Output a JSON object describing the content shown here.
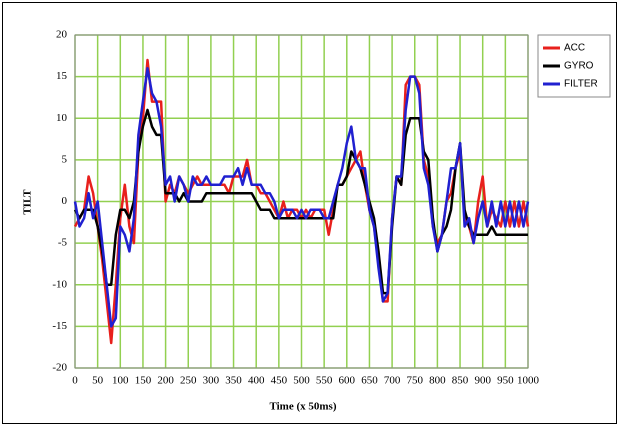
{
  "chart_data": {
    "type": "line",
    "xlabel": "Time (x 50ms)",
    "ylabel": "TILT",
    "x": [
      0,
      10,
      20,
      30,
      40,
      50,
      60,
      70,
      80,
      90,
      100,
      110,
      120,
      130,
      140,
      150,
      160,
      170,
      180,
      190,
      200,
      210,
      220,
      230,
      240,
      250,
      260,
      270,
      280,
      290,
      300,
      310,
      320,
      330,
      340,
      350,
      360,
      370,
      380,
      390,
      400,
      410,
      420,
      430,
      440,
      450,
      460,
      470,
      480,
      490,
      500,
      510,
      520,
      530,
      540,
      550,
      560,
      570,
      580,
      590,
      600,
      610,
      620,
      630,
      640,
      650,
      660,
      670,
      680,
      690,
      700,
      710,
      720,
      730,
      740,
      750,
      760,
      770,
      780,
      790,
      800,
      810,
      820,
      830,
      840,
      850,
      860,
      870,
      880,
      890,
      900,
      910,
      920,
      930,
      940,
      950,
      960,
      970,
      980,
      990,
      1000
    ],
    "series": [
      {
        "name": "ACC",
        "color": "#e8201c",
        "values": [
          -3,
          -2,
          -1,
          3,
          1,
          -3,
          -7,
          -12,
          -17,
          -10,
          -2,
          2,
          -3,
          -5,
          6,
          10,
          17,
          12,
          12,
          12,
          0,
          2,
          1,
          3,
          2,
          1,
          2,
          3,
          2,
          2,
          2,
          2,
          2,
          2,
          1,
          3,
          3,
          3,
          5,
          2,
          2,
          1,
          1,
          0,
          -1,
          -2,
          0,
          -2,
          -1,
          -1,
          -2,
          -1,
          -2,
          -1,
          -1,
          -1,
          -4,
          -1,
          2,
          2,
          3,
          4,
          5,
          6,
          2,
          -1,
          -3,
          -7,
          -12,
          -12,
          -2,
          3,
          2,
          14,
          15,
          15,
          14,
          5,
          3,
          -3,
          -5,
          -4,
          0,
          1,
          4,
          6,
          -2,
          -3,
          -5,
          0,
          3,
          -3,
          -1,
          -2,
          -3,
          0,
          -3,
          0,
          -3,
          0,
          -3
        ]
      },
      {
        "name": "GYRO",
        "color": "#000000",
        "values": [
          -1,
          -2,
          -1,
          -1,
          -1,
          -3,
          -6,
          -10,
          -10,
          -4,
          -1,
          -1,
          -2,
          0,
          6,
          9,
          11,
          9,
          8,
          8,
          1,
          1,
          1,
          0,
          1,
          0,
          0,
          0,
          0,
          1,
          1,
          1,
          1,
          1,
          1,
          1,
          1,
          1,
          1,
          1,
          0,
          -1,
          -1,
          -1,
          -2,
          -2,
          -2,
          -2,
          -2,
          -2,
          -2,
          -2,
          -2,
          -2,
          -2,
          -2,
          -2,
          -2,
          2,
          2,
          3,
          6,
          5,
          4,
          2,
          0,
          -2,
          -6,
          -11,
          -11,
          -3,
          3,
          2,
          8,
          10,
          10,
          10,
          6,
          5,
          -2,
          -6,
          -4,
          -3,
          -1,
          4,
          7,
          -1,
          -3,
          -4,
          -4,
          -4,
          -4,
          -3,
          -4,
          -4,
          -4,
          -4,
          -4,
          -4,
          -4,
          -4
        ]
      },
      {
        "name": "FILTER",
        "color": "#2020d0",
        "values": [
          0,
          -3,
          -2,
          1,
          -2,
          0,
          -5,
          -10,
          -15,
          -14,
          -3,
          -4,
          -6,
          -2,
          8,
          12,
          16,
          13,
          12,
          9,
          2,
          3,
          0,
          3,
          2,
          0,
          3,
          2,
          2,
          3,
          2,
          2,
          2,
          3,
          3,
          3,
          4,
          2,
          4,
          2,
          2,
          2,
          1,
          1,
          0,
          -2,
          -1,
          -1,
          -1,
          -2,
          -1,
          -2,
          -1,
          -1,
          -1,
          -2,
          -2,
          0,
          2,
          4,
          7,
          9,
          5,
          4,
          4,
          -1,
          -3,
          -8,
          -12,
          -11,
          -2,
          3,
          3,
          11,
          15,
          15,
          13,
          4,
          2,
          -3,
          -6,
          -4,
          0,
          4,
          4,
          7,
          -3,
          -2,
          -5,
          -2,
          0,
          -3,
          0,
          -3,
          0,
          -3,
          0,
          -3,
          0,
          -3,
          0
        ]
      }
    ],
    "xlim": [
      0,
      1000
    ],
    "xticks": [
      0,
      50,
      100,
      150,
      200,
      250,
      300,
      350,
      400,
      450,
      500,
      550,
      600,
      650,
      700,
      750,
      800,
      850,
      900,
      950,
      1000
    ],
    "ylim": [
      -20,
      20
    ],
    "yticks": [
      -20,
      -15,
      -10,
      -5,
      0,
      5,
      10,
      15,
      20
    ],
    "grid": true,
    "grid_color": "#92d050",
    "legend": "right"
  }
}
